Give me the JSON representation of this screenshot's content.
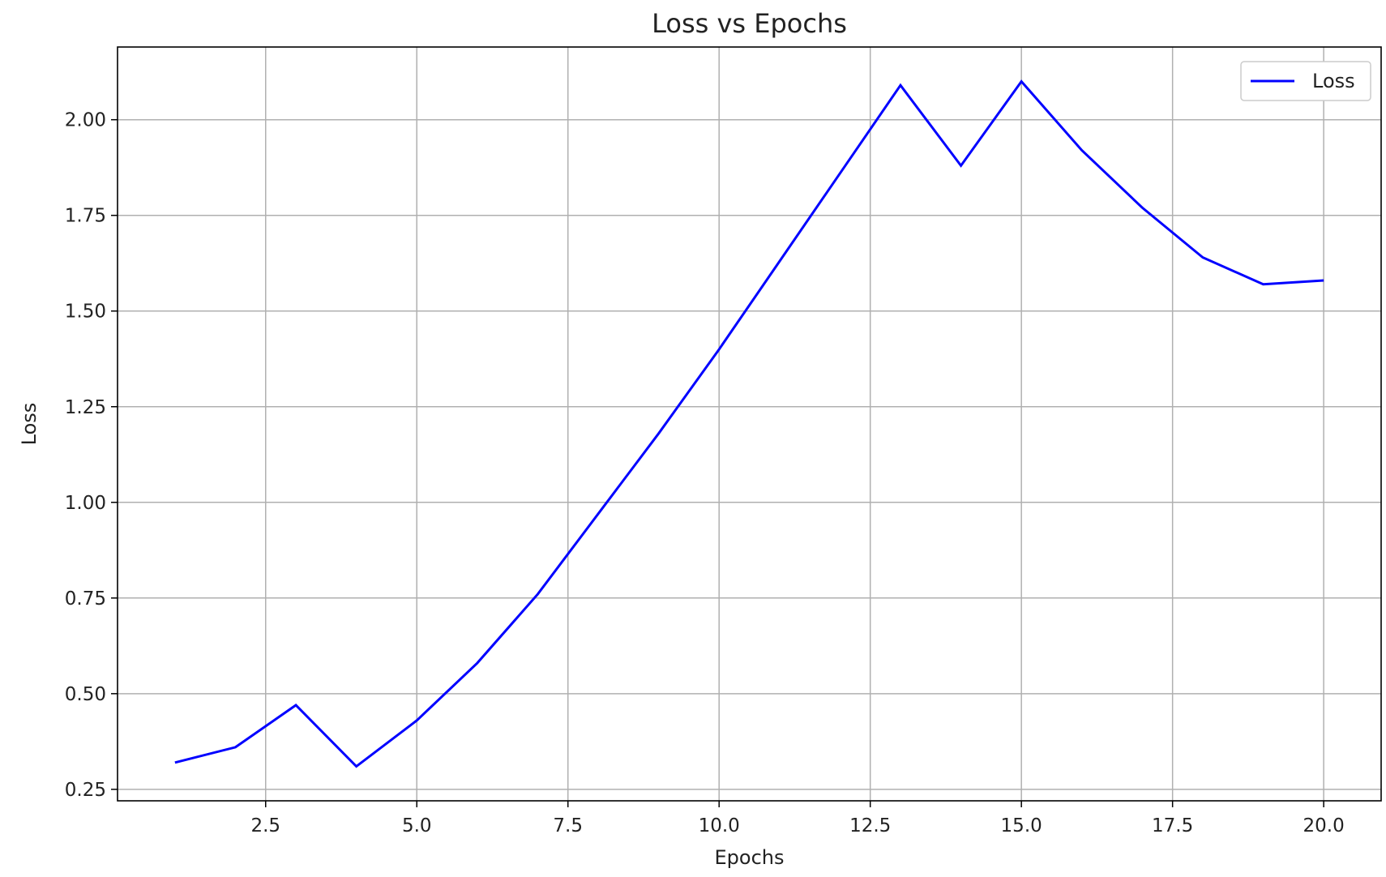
{
  "chart_data": {
    "type": "line",
    "title": "Loss vs Epochs",
    "xlabel": "Epochs",
    "ylabel": "Loss",
    "xlim": [
      0.05,
      20.95
    ],
    "ylim": [
      0.22,
      2.19
    ],
    "x_ticks": [
      2.5,
      5.0,
      7.5,
      10.0,
      12.5,
      15.0,
      17.5,
      20.0
    ],
    "x_tick_labels": [
      "2.5",
      "5.0",
      "7.5",
      "10.0",
      "12.5",
      "15.0",
      "17.5",
      "20.0"
    ],
    "y_ticks": [
      0.25,
      0.5,
      0.75,
      1.0,
      1.25,
      1.5,
      1.75,
      2.0
    ],
    "y_tick_labels": [
      "0.25",
      "0.50",
      "0.75",
      "1.00",
      "1.25",
      "1.50",
      "1.75",
      "2.00"
    ],
    "grid": true,
    "legend_position": "top-right",
    "series": [
      {
        "name": "Loss",
        "color": "#0000ff",
        "x": [
          1,
          2,
          3,
          4,
          5,
          6,
          7,
          8,
          9,
          10,
          11,
          12,
          13,
          14,
          15,
          16,
          17,
          18,
          19,
          20
        ],
        "y": [
          0.32,
          0.36,
          0.47,
          0.31,
          0.43,
          0.58,
          0.76,
          0.97,
          1.18,
          1.4,
          1.63,
          1.86,
          2.09,
          1.88,
          2.1,
          1.92,
          1.77,
          1.64,
          1.57,
          1.58
        ]
      }
    ]
  }
}
